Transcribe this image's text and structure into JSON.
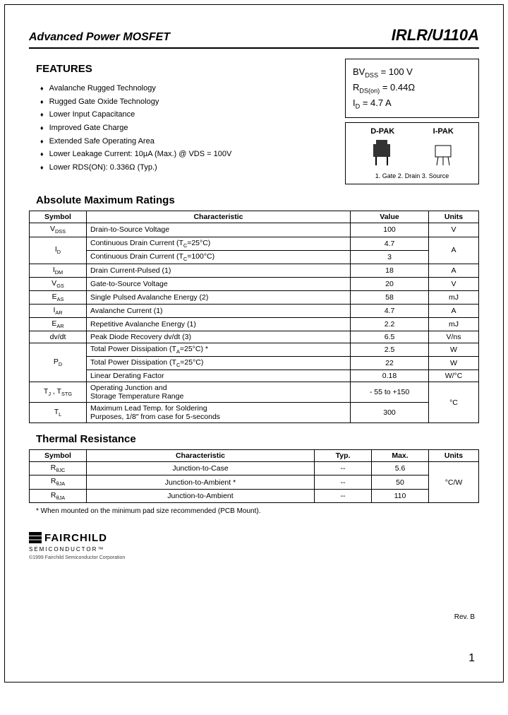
{
  "header": {
    "left": "Advanced Power MOSFET",
    "right": "IRLR/U110A"
  },
  "features": {
    "title": "FEATURES",
    "items": [
      "Avalanche Rugged Technology",
      "Rugged Gate Oxide Technology",
      "Lower Input Capacitance",
      "Improved Gate Charge",
      "Extended Safe Operating Area",
      "Lower Leakage Current: 10µA (Max.) @ VDS = 100V",
      "Lower RDS(ON): 0.336Ω (Typ.)"
    ]
  },
  "specbox": {
    "l1a": "BV",
    "l1b": "DSS",
    "l1c": " = 100 V",
    "l2a": "R",
    "l2b": "DS(on)",
    "l2c": " = 0.44Ω",
    "l3a": "I",
    "l3b": "D",
    "l3c": " = 4.7 A"
  },
  "pkg": {
    "dpak": "D-PAK",
    "ipak": "I-PAK",
    "pins": "1. Gate  2. Drain  3. Source"
  },
  "amr": {
    "title": "Absolute Maximum Ratings",
    "cols": [
      "Symbol",
      "Characteristic",
      "Value",
      "Units"
    ],
    "rows": [
      {
        "sym": "V<sub>DSS</sub>",
        "char": "Drain-to-Source Voltage",
        "val": "100",
        "unit": "V",
        "rowspanUnit": 1
      },
      {
        "sym": "I<sub>D</sub>",
        "char": "Continuous Drain Current (T<sub>C</sub>=25°C)",
        "val": "4.7",
        "unit": "A",
        "rowspanSym": 2,
        "rowspanUnit": 2
      },
      {
        "char": "Continuous Drain Current (T<sub>C</sub>=100°C)",
        "val": "3"
      },
      {
        "sym": "I<sub>DM</sub>",
        "char": "Drain Current-Pulsed                               (1)",
        "val": "18",
        "unit": "A"
      },
      {
        "sym": "V<sub>GS</sub>",
        "char": "Gate-to-Source Voltage",
        "val": "20",
        "unit": "V"
      },
      {
        "sym": "E<sub>AS</sub>",
        "char": "Single Pulsed Avalanche Energy             (2)",
        "val": "58",
        "unit": "mJ"
      },
      {
        "sym": "I<sub>AR</sub>",
        "char": "Avalanche Current                                   (1)",
        "val": "4.7",
        "unit": "A"
      },
      {
        "sym": "E<sub>AR</sub>",
        "char": "Repetitive Avalanche Energy                   (1)",
        "val": "2.2",
        "unit": "mJ"
      },
      {
        "sym": "dv/dt",
        "char": "Peak Diode Recovery dv/dt                       (3)",
        "val": "6.5",
        "unit": "V/ns"
      },
      {
        "sym": "P<sub>D</sub>",
        "char": "Total Power Dissipation (T<sub>A</sub>=25°C) *",
        "val": "2.5",
        "unit": "W",
        "rowspanSym": 3
      },
      {
        "char": "Total Power Dissipation (T<sub>C</sub>=25°C)",
        "val": "22",
        "unit": "W"
      },
      {
        "char": "Linear Derating Factor",
        "val": "0.18",
        "unit": "W/°C"
      },
      {
        "sym": "T<sub>J</sub> , T<sub>STG</sub>",
        "char": "Operating Junction and<br>Storage Temperature Range",
        "val": "- 55 to +150",
        "unit": "°C",
        "rowspanUnit": 2
      },
      {
        "sym": "T<sub>L</sub>",
        "char": "Maximum Lead Temp. for Soldering<br>Purposes, 1/8″ from case for 5-seconds",
        "val": "300"
      }
    ]
  },
  "thermal": {
    "title": "Thermal Resistance",
    "cols": [
      "Symbol",
      "Characteristic",
      "Typ.",
      "Max.",
      "Units"
    ],
    "rows": [
      {
        "sym": "R<sub>θJC</sub>",
        "char": "Junction-to-Case",
        "typ": "--",
        "max": "5.6"
      },
      {
        "sym": "R<sub>θJA</sub>",
        "char": "Junction-to-Ambient *",
        "typ": "--",
        "max": "50"
      },
      {
        "sym": "R<sub>θJA</sub>",
        "char": "Junction-to-Ambient",
        "typ": "--",
        "max": "110"
      }
    ],
    "unit": "°C/W"
  },
  "footnote": "*  When mounted on the minimum pad size recommended (PCB Mount).",
  "logo": {
    "name": "FAIRCHILD",
    "sub": "SEMICONDUCTOR™",
    "copy": "©1999 Fairchild Semiconductor Corporation"
  },
  "rev": "Rev. B",
  "page": "1",
  "colors": {
    "text": "#000000",
    "bg": "#ffffff"
  }
}
